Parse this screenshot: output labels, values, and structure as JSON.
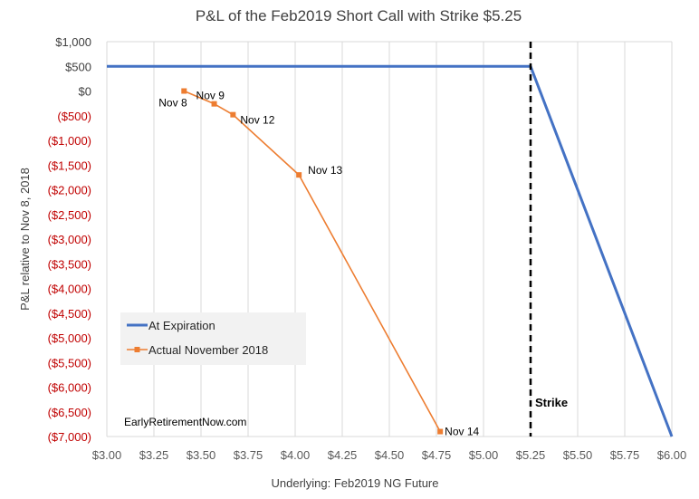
{
  "chart_data": {
    "type": "line",
    "title": "P&L of the Feb2019 Short Call with Strike $5.25",
    "xlabel": "Underlying: Feb2019 NG Future",
    "ylabel": "P&L relative to Nov 8, 2018",
    "xlim": [
      3.0,
      6.0
    ],
    "ylim": [
      -7000,
      1000
    ],
    "x_ticks": [
      3.0,
      3.25,
      3.5,
      3.75,
      4.0,
      4.25,
      4.5,
      4.75,
      5.0,
      5.25,
      5.5,
      5.75,
      6.0
    ],
    "x_tick_labels": [
      "$3.00",
      "$3.25",
      "$3.50",
      "$3.75",
      "$4.00",
      "$4.25",
      "$4.50",
      "$4.75",
      "$5.00",
      "$5.25",
      "$5.50",
      "$5.75",
      "$6.00"
    ],
    "y_ticks": [
      1000,
      500,
      0,
      -500,
      -1000,
      -1500,
      -2000,
      -2500,
      -3000,
      -3500,
      -4000,
      -4500,
      -5000,
      -5500,
      -6000,
      -6500,
      -7000
    ],
    "y_tick_labels": [
      "$1,000",
      "$500",
      "$0",
      "($500)",
      "($1,000)",
      "($1,500)",
      "($2,000)",
      "($2,500)",
      "($3,000)",
      "($3,500)",
      "($4,000)",
      "($4,500)",
      "($5,000)",
      "($5,500)",
      "($6,000)",
      "($6,500)",
      "($7,000)"
    ],
    "grid": "vertical",
    "legend_position": "bottom-left",
    "series": [
      {
        "name": "At Expiration",
        "color": "#4472c4",
        "marker": "none",
        "x": [
          3.0,
          5.25,
          6.0
        ],
        "y": [
          500,
          500,
          -7000
        ]
      },
      {
        "name": "Actual November 2018",
        "color": "#ed7d31",
        "marker": "square",
        "x": [
          3.41,
          3.57,
          3.67,
          4.02,
          4.77
        ],
        "y": [
          0,
          -260,
          -480,
          -1700,
          -6900
        ],
        "point_labels": [
          "Nov 8",
          "Nov 9",
          "Nov 12",
          "Nov 13",
          "Nov 14"
        ]
      }
    ],
    "annotations": [
      {
        "text": "Strike",
        "x": 5.25,
        "style": "dashed-vertical-line"
      },
      {
        "text": "EarlyRetirementNow.com"
      }
    ]
  }
}
